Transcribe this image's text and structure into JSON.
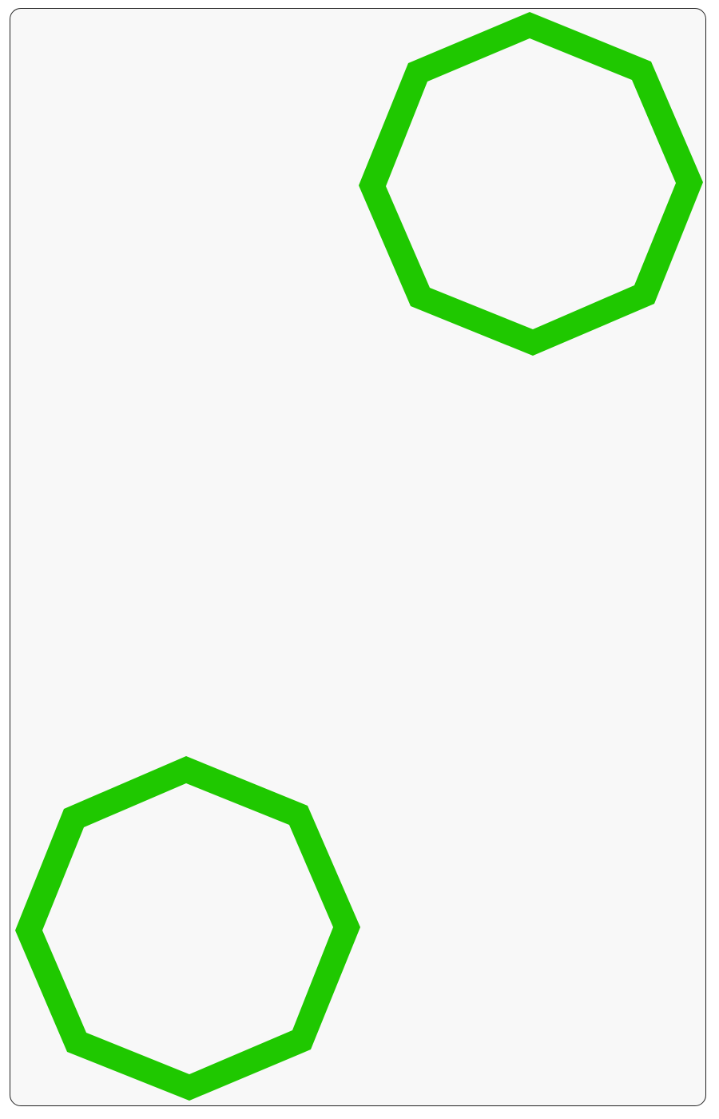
{
  "canvas": {
    "background": "#ffffff",
    "card_fill": "#f8f8f8",
    "card_border": "#222222"
  },
  "shapes": [
    {
      "name": "octagon-top-right",
      "type": "octagon-outline",
      "color": "#1fc800"
    },
    {
      "name": "octagon-bottom-left",
      "type": "octagon-outline",
      "color": "#1fc800"
    }
  ]
}
